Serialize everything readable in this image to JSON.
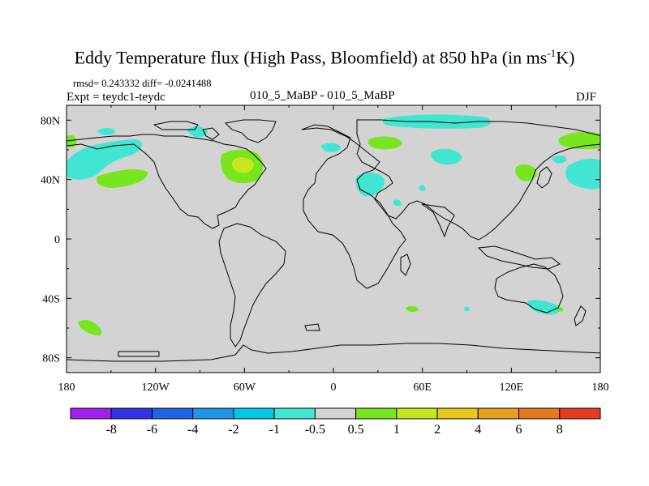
{
  "title": {
    "main": "Eddy Temperature flux (High Pass, Bloomfield) at 850 hPa (in ms",
    "exponent": "-1",
    "tail": "K)"
  },
  "stats_text": "rmsd= 0.243332 diff= -0.0241488",
  "expt_text": "Expt = teydc1-teydc",
  "case_text": "010_5_MaBP - 010_5_MaBP",
  "season": "DJF",
  "axes": {
    "lon_labels": [
      "180",
      "120W",
      "60W",
      "0",
      "60E",
      "120E",
      "180"
    ],
    "lat_labels": [
      "80N",
      "40N",
      "0",
      "40S",
      "80S"
    ]
  },
  "colorbar": {
    "colors": [
      "#a020f0",
      "#3232e6",
      "#1e64e6",
      "#1e96e6",
      "#00c8e6",
      "#40e6d2",
      "#d3d3d3",
      "#78e61e",
      "#c8e61e",
      "#e6c81e",
      "#e6a01e",
      "#e6781e",
      "#e63c1e"
    ],
    "labels": [
      "-8",
      "-6",
      "-4",
      "-2",
      "-1",
      "-0.5",
      "0.5",
      "1",
      "2",
      "4",
      "6",
      "8"
    ]
  },
  "map_colors": {
    "background": "#d3d3d3",
    "cyan": "#40e6d2",
    "green": "#78e61e",
    "yellow_green": "#c8e61e",
    "coast": "#000000"
  }
}
